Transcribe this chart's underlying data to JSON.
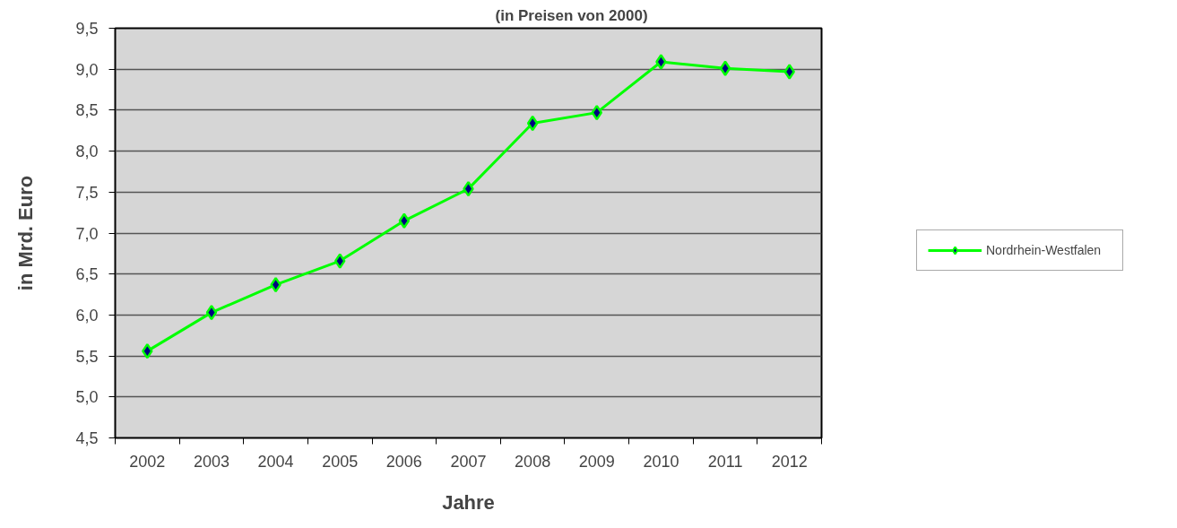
{
  "chart_data": {
    "type": "line",
    "title": "(in Preisen von 2000)",
    "xlabel": "Jahre",
    "ylabel": "in Mrd. Euro",
    "categories": [
      "2002",
      "2003",
      "2004",
      "2005",
      "2006",
      "2007",
      "2008",
      "2009",
      "2010",
      "2011",
      "2012"
    ],
    "series": [
      {
        "name": "Nordrhein-Westfalen",
        "color": "#00ff00",
        "values": [
          5.56,
          6.03,
          6.37,
          6.66,
          7.15,
          7.54,
          8.34,
          8.47,
          9.09,
          9.01,
          8.97
        ]
      }
    ],
    "ylim": [
      4.5,
      9.5
    ],
    "yticks": [
      {
        "value": 4.5,
        "label": "4,5"
      },
      {
        "value": 5.0,
        "label": "5,0"
      },
      {
        "value": 5.5,
        "label": "5,5"
      },
      {
        "value": 6.0,
        "label": "6,0"
      },
      {
        "value": 6.5,
        "label": "6,5"
      },
      {
        "value": 7.0,
        "label": "7,0"
      },
      {
        "value": 7.5,
        "label": "7,5"
      },
      {
        "value": 8.0,
        "label": "8,0"
      },
      {
        "value": 8.5,
        "label": "8,5"
      },
      {
        "value": 9.0,
        "label": "9,0"
      },
      {
        "value": 9.5,
        "label": "9,5"
      }
    ],
    "grid": "y",
    "legend": "right",
    "marker": "diamond",
    "line_style": "solid"
  }
}
